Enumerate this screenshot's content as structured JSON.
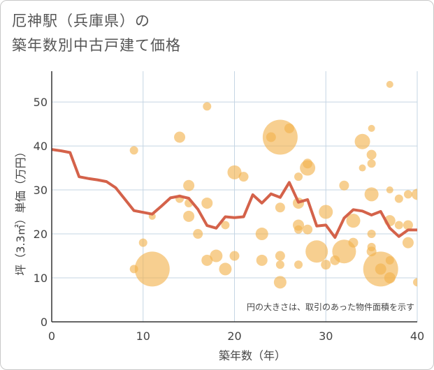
{
  "title_line1": "厄神駅（兵庫県）の",
  "title_line2": "築年数別中古戸建て価格",
  "chart_data": {
    "type": "scatter",
    "title": "厄神駅（兵庫県）の 築年数別中古戸建て価格",
    "xlabel": "築年数（年）",
    "ylabel": "坪（3.3㎡）単価（万円）",
    "xlim": [
      0,
      40
    ],
    "ylim": [
      0,
      57
    ],
    "xticks": [
      0,
      10,
      20,
      30,
      40
    ],
    "yticks": [
      0,
      10,
      20,
      30,
      40,
      50
    ],
    "grid": true,
    "note": "円の大きさは、取引のあった物件面積を示す",
    "colors": {
      "bubble": "#f2b24c",
      "line": "#d4624a",
      "grid": "#c5d5e3"
    },
    "line": {
      "x": [
        0,
        1,
        2,
        3,
        4,
        5,
        6,
        7,
        8,
        9,
        10,
        11,
        12,
        13,
        14,
        15,
        16,
        17,
        18,
        19,
        20,
        21,
        22,
        23,
        24,
        25,
        26,
        27,
        28,
        29,
        30,
        31,
        32,
        33,
        34,
        35,
        36,
        37,
        38,
        39,
        40
      ],
      "y": [
        39.2,
        38.9,
        38.5,
        33.0,
        32.6,
        32.3,
        31.9,
        30.5,
        27.9,
        25.3,
        24.9,
        24.5,
        26.3,
        28.2,
        28.6,
        28.1,
        25.6,
        21.9,
        21.3,
        23.9,
        23.7,
        23.9,
        28.9,
        27.0,
        29.1,
        28.3,
        31.7,
        27.2,
        27.8,
        21.8,
        22.0,
        19.2,
        23.6,
        25.5,
        25.2,
        24.3,
        25.1,
        21.3,
        19.4,
        20.9,
        20.9
      ]
    },
    "bubbles": [
      {
        "x": 9,
        "y": 39,
        "s": 6
      },
      {
        "x": 9,
        "y": 12,
        "s": 6
      },
      {
        "x": 10,
        "y": 18,
        "s": 6
      },
      {
        "x": 11,
        "y": 24,
        "s": 5
      },
      {
        "x": 11,
        "y": 12,
        "s": 25
      },
      {
        "x": 14,
        "y": 42,
        "s": 8
      },
      {
        "x": 14,
        "y": 28,
        "s": 6
      },
      {
        "x": 15,
        "y": 31,
        "s": 8
      },
      {
        "x": 15,
        "y": 24,
        "s": 8
      },
      {
        "x": 15,
        "y": 27,
        "s": 6
      },
      {
        "x": 16,
        "y": 20,
        "s": 7
      },
      {
        "x": 17,
        "y": 49,
        "s": 6
      },
      {
        "x": 17,
        "y": 27,
        "s": 8
      },
      {
        "x": 17,
        "y": 14,
        "s": 8
      },
      {
        "x": 18,
        "y": 15,
        "s": 9
      },
      {
        "x": 19,
        "y": 22,
        "s": 6
      },
      {
        "x": 19,
        "y": 12,
        "s": 9
      },
      {
        "x": 20,
        "y": 34,
        "s": 10
      },
      {
        "x": 20,
        "y": 15,
        "s": 7
      },
      {
        "x": 21,
        "y": 33,
        "s": 7
      },
      {
        "x": 23,
        "y": 20,
        "s": 9
      },
      {
        "x": 23,
        "y": 14,
        "s": 8
      },
      {
        "x": 24,
        "y": 42,
        "s": 7
      },
      {
        "x": 25,
        "y": 42,
        "s": 25
      },
      {
        "x": 25,
        "y": 26,
        "s": 7
      },
      {
        "x": 25,
        "y": 15,
        "s": 7
      },
      {
        "x": 25,
        "y": 13,
        "s": 6
      },
      {
        "x": 25,
        "y": 9,
        "s": 9
      },
      {
        "x": 26,
        "y": 44,
        "s": 7
      },
      {
        "x": 27,
        "y": 33,
        "s": 6
      },
      {
        "x": 27,
        "y": 27,
        "s": 8
      },
      {
        "x": 27,
        "y": 22,
        "s": 8
      },
      {
        "x": 27,
        "y": 21,
        "s": 6
      },
      {
        "x": 27,
        "y": 13,
        "s": 6
      },
      {
        "x": 28,
        "y": 36,
        "s": 7
      },
      {
        "x": 28,
        "y": 35,
        "s": 11
      },
      {
        "x": 28,
        "y": 21,
        "s": 7
      },
      {
        "x": 29,
        "y": 16,
        "s": 16
      },
      {
        "x": 30,
        "y": 25,
        "s": 10
      },
      {
        "x": 30,
        "y": 13,
        "s": 7
      },
      {
        "x": 31,
        "y": 14,
        "s": 7
      },
      {
        "x": 32,
        "y": 31,
        "s": 7
      },
      {
        "x": 32,
        "y": 16,
        "s": 17
      },
      {
        "x": 33,
        "y": 23,
        "s": 10
      },
      {
        "x": 33,
        "y": 18,
        "s": 7
      },
      {
        "x": 34,
        "y": 41,
        "s": 11
      },
      {
        "x": 34,
        "y": 35,
        "s": 5
      },
      {
        "x": 35,
        "y": 44,
        "s": 5
      },
      {
        "x": 35,
        "y": 38,
        "s": 7
      },
      {
        "x": 35,
        "y": 36,
        "s": 6
      },
      {
        "x": 35,
        "y": 29,
        "s": 10
      },
      {
        "x": 35,
        "y": 20,
        "s": 6
      },
      {
        "x": 35,
        "y": 17,
        "s": 6
      },
      {
        "x": 35,
        "y": 16,
        "s": 7
      },
      {
        "x": 36,
        "y": 12,
        "s": 25
      },
      {
        "x": 36,
        "y": 12,
        "s": 8
      },
      {
        "x": 37,
        "y": 54,
        "s": 5
      },
      {
        "x": 37,
        "y": 30,
        "s": 5
      },
      {
        "x": 37,
        "y": 23,
        "s": 8
      },
      {
        "x": 37,
        "y": 14,
        "s": 6
      },
      {
        "x": 37,
        "y": 10,
        "s": 8
      },
      {
        "x": 38,
        "y": 28,
        "s": 6
      },
      {
        "x": 38,
        "y": 22,
        "s": 6
      },
      {
        "x": 39,
        "y": 29,
        "s": 6
      },
      {
        "x": 39,
        "y": 22,
        "s": 7
      },
      {
        "x": 39,
        "y": 18,
        "s": 8
      },
      {
        "x": 40,
        "y": 29,
        "s": 8
      },
      {
        "x": 40,
        "y": 9,
        "s": 6
      }
    ]
  }
}
